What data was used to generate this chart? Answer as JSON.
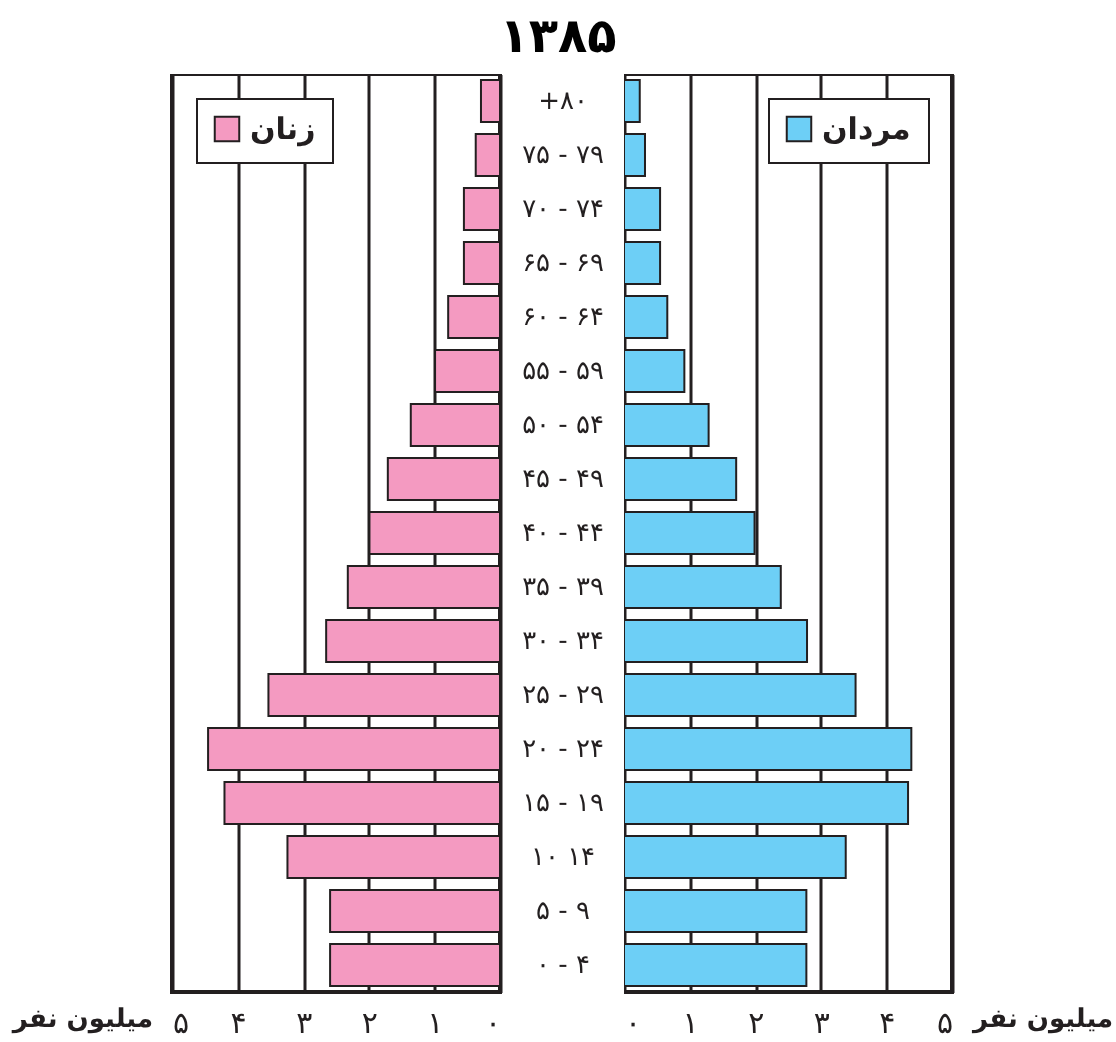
{
  "chart_data": [
    {
      "type": "bar",
      "title": "۱۳۸۵",
      "orientation": "horizontal",
      "xlabel": "میلیون نفر",
      "categories": [
        "+۸۰",
        "۷۵ - ۷۹",
        "۷۰ - ۷۴",
        "۶۵ - ۶۹",
        "۶۰ - ۶۴",
        "۵۵ - ۵۹",
        "۵۰ - ۵۴",
        "۴۵ - ۴۹",
        "۴۰ - ۴۴",
        "۳۵ - ۳۹",
        "۳۰ - ۳۴",
        "۲۵ - ۲۹",
        "۲۰ - ۲۴",
        "۱۵ - ۱۹",
        "۱۰   ۱۴",
        "۵ - ۹",
        "۰ - ۴"
      ],
      "series": [
        {
          "name": "زنان",
          "color": "#f49ac1",
          "values": [
            0.29,
            0.37,
            0.55,
            0.55,
            0.79,
            0.99,
            1.36,
            1.71,
            1.99,
            2.32,
            2.65,
            3.53,
            4.45,
            4.2,
            3.24,
            2.59,
            2.59
          ]
        }
      ],
      "xlim": [
        5,
        0
      ],
      "xticks": [
        {
          "value": 5,
          "label": "۵"
        },
        {
          "value": 4,
          "label": "۴"
        },
        {
          "value": 3,
          "label": "۳"
        },
        {
          "value": 2,
          "label": "۲"
        },
        {
          "value": 1,
          "label": "۱"
        },
        {
          "value": 0,
          "label": "۰"
        }
      ],
      "grid": "x",
      "legend": "top left"
    },
    {
      "type": "bar",
      "orientation": "horizontal",
      "xlabel": "میلیون نفر",
      "categories": [
        null,
        null,
        null,
        null,
        null,
        null,
        null,
        null,
        null,
        null,
        null,
        null,
        null,
        null,
        null,
        null,
        null
      ],
      "series": [
        {
          "name": "مردان",
          "color": "#6dcff6",
          "values": [
            0.24,
            0.32,
            0.55,
            0.55,
            0.66,
            0.92,
            1.29,
            1.71,
            1.99,
            2.39,
            2.79,
            3.53,
            4.38,
            4.33,
            3.38,
            2.78,
            2.78
          ]
        }
      ],
      "xlim": [
        0,
        5
      ],
      "xticks": [
        {
          "value": 0,
          "label": "۰"
        },
        {
          "value": 1,
          "label": "۱"
        },
        {
          "value": 2,
          "label": "۲"
        },
        {
          "value": 3,
          "label": "۳"
        },
        {
          "value": 4,
          "label": "۴"
        },
        {
          "value": 5,
          "label": "۵"
        }
      ],
      "grid": "x",
      "legend": "top right",
      "tick_labels": "x"
    }
  ]
}
